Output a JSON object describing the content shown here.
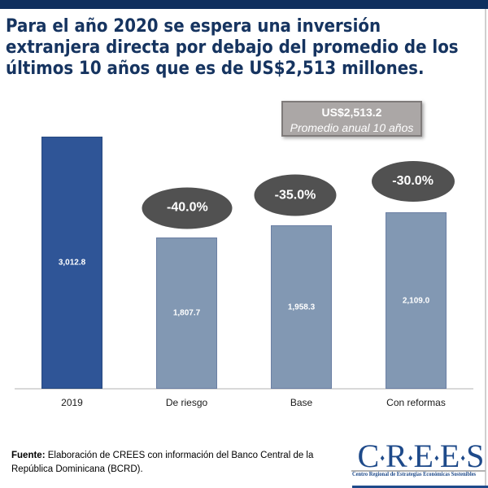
{
  "title": {
    "lines": [
      "Para el año 2020 se espera una inversión",
      "extranjera directa por debajo del promedio de los",
      "últimos 10 años que es de US$2,513 millones."
    ],
    "color": "#163460"
  },
  "top_bar_color": "#0f2f5e",
  "average_callout": {
    "value_label": "US$2,513.2",
    "caption": "Promedio anual 10 años",
    "fill": "#aba7a6",
    "border": "#7f7b7a"
  },
  "chart_data": {
    "type": "bar",
    "categories": [
      "2019",
      "De riesgo",
      "Base",
      "Con reformas"
    ],
    "values": [
      3012.8,
      1807.7,
      1958.3,
      2109.0
    ],
    "value_labels": [
      "3,012.8",
      "1,807.7",
      "1,958.3",
      "2,109.0"
    ],
    "percent_badges": [
      null,
      "-40.0%",
      "-35.0%",
      "-30.0%"
    ],
    "average_reference": 2513.2,
    "bar_colors": [
      "#2f5597",
      "#8298b3",
      "#8298b3",
      "#8298b3"
    ],
    "bar_border_colors": [
      "#27497f",
      "#6b7fa4",
      "#6b7fa4",
      "#6b7fa4"
    ],
    "badge_color": "#515151",
    "axis_color": "#d9d9d9",
    "ylim": [
      0,
      3012.8
    ],
    "title": "",
    "xlabel": "",
    "ylabel": "",
    "grid": false,
    "legend": false
  },
  "footer": {
    "source_prefix": "Fuente:",
    "source_rest": " Elaboración de CREES con información del Banco Central de la República Dominicana (BCRD)."
  },
  "logo": {
    "letters": [
      "C",
      "R",
      "E",
      "E",
      "S"
    ],
    "separator": "♦",
    "caption": "Centro Regional de Estrategias Económicas Sostenibles",
    "color": "#1e4a8a"
  },
  "right_edge_line_color": "#cfcfcf"
}
